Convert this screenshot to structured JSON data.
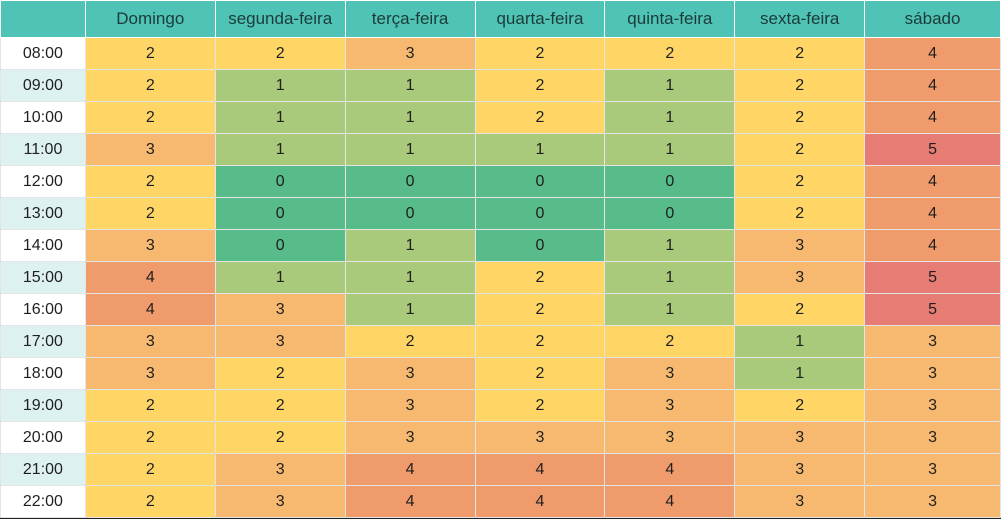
{
  "table": {
    "days": [
      "Domingo",
      "segunda-feira",
      "terça-feira",
      "quarta-feira",
      "quinta-feira",
      "sexta-feira",
      "sábado"
    ],
    "rows": [
      {
        "time": "08:00",
        "values": [
          "2",
          "2",
          "3",
          "2",
          "2",
          "2",
          "4"
        ],
        "alt": false
      },
      {
        "time": "09:00",
        "values": [
          "2",
          "1",
          "1",
          "2",
          "1",
          "2",
          "4"
        ],
        "alt": true
      },
      {
        "time": "10:00",
        "values": [
          "2",
          "1",
          "1",
          "2",
          "1",
          "2",
          "4"
        ],
        "alt": false
      },
      {
        "time": "11:00",
        "values": [
          "3",
          "1",
          "1",
          "1",
          "1",
          "2",
          "5"
        ],
        "alt": true
      },
      {
        "time": "12:00",
        "values": [
          "2",
          "0",
          "0",
          "0",
          "0",
          "2",
          "4"
        ],
        "alt": false
      },
      {
        "time": "13:00",
        "values": [
          "2",
          "0",
          "0",
          "0",
          "0",
          "2",
          "4"
        ],
        "alt": true
      },
      {
        "time": "14:00",
        "values": [
          "3",
          "0",
          "1",
          "0",
          "1",
          "3",
          "4"
        ],
        "alt": false
      },
      {
        "time": "15:00",
        "values": [
          "4",
          "1",
          "1",
          "2",
          "1",
          "3",
          "5"
        ],
        "alt": true
      },
      {
        "time": "16:00",
        "values": [
          "4",
          "3",
          "1",
          "2",
          "1",
          "2",
          "5"
        ],
        "alt": false
      },
      {
        "time": "17:00",
        "values": [
          "3",
          "3",
          "2",
          "2",
          "2",
          "1",
          "3"
        ],
        "alt": true
      },
      {
        "time": "18:00",
        "values": [
          "3",
          "2",
          "3",
          "2",
          "3",
          "1",
          "3"
        ],
        "alt": false
      },
      {
        "time": "19:00",
        "values": [
          "2",
          "2",
          "3",
          "2",
          "3",
          "2",
          "3"
        ],
        "alt": true
      },
      {
        "time": "20:00",
        "values": [
          "2",
          "2",
          "3",
          "3",
          "3",
          "3",
          "3"
        ],
        "alt": false
      },
      {
        "time": "21:00",
        "values": [
          "2",
          "3",
          "4",
          "4",
          "4",
          "3",
          "3"
        ],
        "alt": true
      },
      {
        "time": "22:00",
        "values": [
          "2",
          "3",
          "4",
          "4",
          "4",
          "3",
          "3"
        ],
        "alt": false
      }
    ]
  },
  "colors": {
    "header": "#4fc3b5",
    "alt_time_row": "#def1f1",
    "scale": {
      "0": "#57bb8a",
      "1": "#a9c97b",
      "2": "#ffd666",
      "3": "#f7b96f",
      "4": "#f09b6c",
      "5": "#e67c73"
    }
  }
}
